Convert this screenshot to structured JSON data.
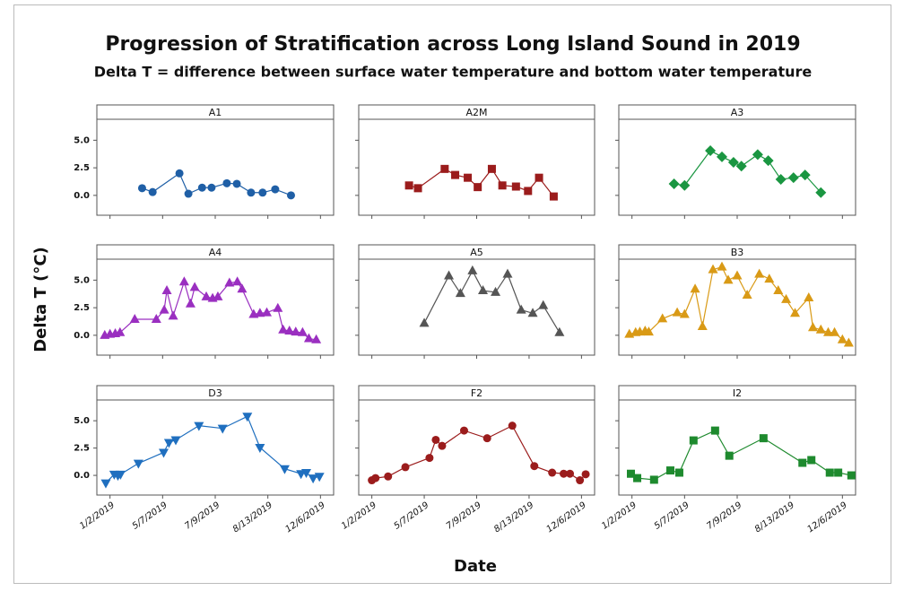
{
  "chart_data": {
    "type": "line",
    "title": "Progression of Stratification across Long Island Sound in 2019",
    "subtitle": "Delta T = difference between surface water temperature and bottom water temperature",
    "x_label": "Date",
    "y_label": "Delta T (°C)",
    "xlim": [
      -0.25,
      4.25
    ],
    "xticks": [
      {
        "value": 0,
        "label": "1/2/2019"
      },
      {
        "value": 1,
        "label": "5/7/2019"
      },
      {
        "value": 2,
        "label": "7/9/2019"
      },
      {
        "value": 3,
        "label": "8/13/2019"
      },
      {
        "value": 4,
        "label": "12/6/2019"
      }
    ],
    "ylim": [
      -1.8,
      6.9
    ],
    "yticks": [
      {
        "value": 0,
        "label": "0.0"
      },
      {
        "value": 2.5,
        "label": "2.5"
      },
      {
        "value": 5,
        "label": "5.0"
      }
    ],
    "panels": [
      {
        "title": "A1",
        "color": "#1f5fa6",
        "marker": "circle",
        "x": [
          0.61,
          0.81,
          1.32,
          1.49,
          1.75,
          1.93,
          2.22,
          2.41,
          2.68,
          2.9,
          3.14,
          3.44
        ],
        "values": [
          0.65,
          0.3,
          2.0,
          0.15,
          0.7,
          0.7,
          1.1,
          1.05,
          0.25,
          0.25,
          0.55,
          0.0
        ]
      },
      {
        "title": "A2M",
        "color": "#9b1c1c",
        "marker": "square",
        "x": [
          0.71,
          0.88,
          1.39,
          1.59,
          1.83,
          2.02,
          2.29,
          2.49,
          2.75,
          2.98,
          3.19,
          3.47
        ],
        "values": [
          0.9,
          0.65,
          2.4,
          1.85,
          1.6,
          0.75,
          2.4,
          0.9,
          0.8,
          0.4,
          1.6,
          -0.1
        ]
      },
      {
        "title": "A3",
        "color": "#1a9641",
        "marker": "diamond",
        "x": [
          0.8,
          1.0,
          1.49,
          1.71,
          1.93,
          2.08,
          2.39,
          2.59,
          2.83,
          3.07,
          3.29,
          3.59
        ],
        "values": [
          1.05,
          0.9,
          4.05,
          3.5,
          3.0,
          2.65,
          3.7,
          3.15,
          1.45,
          1.6,
          1.85,
          0.25
        ]
      },
      {
        "title": "A4",
        "color": "#9a2fc0",
        "marker": "triangle",
        "x": [
          -0.1,
          0,
          0.1,
          0.19,
          0.47,
          0.88,
          1.03,
          1.08,
          1.2,
          1.41,
          1.53,
          1.61,
          1.83,
          1.95,
          2.05,
          2.27,
          2.42,
          2.51,
          2.73,
          2.85,
          2.98,
          3.19,
          3.29,
          3.41,
          3.53,
          3.66,
          3.78,
          3.92
        ],
        "values": [
          0,
          0.1,
          0.15,
          0.25,
          1.45,
          1.45,
          2.3,
          4.05,
          1.75,
          4.85,
          2.85,
          4.35,
          3.5,
          3.35,
          3.5,
          4.75,
          4.85,
          4.2,
          1.9,
          2.0,
          2.05,
          2.45,
          0.5,
          0.4,
          0.3,
          0.25,
          -0.3,
          -0.4
        ]
      },
      {
        "title": "A5",
        "color": "#555555",
        "marker": "triangle",
        "x": [
          1.0,
          1.47,
          1.69,
          1.92,
          2.12,
          2.36,
          2.59,
          2.85,
          3.07,
          3.27,
          3.58
        ],
        "values": [
          1.1,
          5.4,
          3.8,
          5.85,
          4.05,
          3.9,
          5.55,
          2.3,
          2.0,
          2.7,
          0.25
        ]
      },
      {
        "title": "B3",
        "color": "#d99a16",
        "marker": "triangle",
        "x": [
          -0.05,
          0.07,
          0.15,
          0.25,
          0.32,
          0.58,
          0.86,
          1.0,
          1.2,
          1.34,
          1.54,
          1.71,
          1.83,
          2.0,
          2.19,
          2.42,
          2.61,
          2.78,
          2.93,
          3.1,
          3.36,
          3.44,
          3.59,
          3.73,
          3.85,
          4.0,
          4.12
        ],
        "values": [
          0.1,
          0.25,
          0.3,
          0.4,
          0.3,
          1.5,
          2.05,
          1.9,
          4.2,
          0.8,
          5.95,
          6.2,
          5.0,
          5.4,
          3.65,
          5.55,
          5.1,
          4.05,
          3.25,
          2.0,
          3.4,
          0.7,
          0.5,
          0.25,
          0.25,
          -0.4,
          -0.7
        ]
      },
      {
        "title": "D3",
        "color": "#1f6fbf",
        "marker": "triangle-down",
        "x": [
          -0.08,
          0.08,
          0.15,
          0.2,
          0.54,
          1.02,
          1.12,
          1.25,
          1.69,
          2.14,
          2.61,
          2.85,
          3.32,
          3.63,
          3.73,
          3.86,
          3.98
        ],
        "values": [
          -0.7,
          0.1,
          0,
          0.1,
          1.1,
          2.1,
          3.0,
          3.25,
          4.55,
          4.3,
          5.4,
          2.55,
          0.6,
          0.15,
          0.25,
          -0.25,
          -0.1
        ]
      },
      {
        "title": "F2",
        "color": "#9b1c1c",
        "marker": "circle",
        "x": [
          0,
          0.07,
          0.31,
          0.64,
          1.1,
          1.22,
          1.34,
          1.76,
          2.2,
          2.68,
          3.1,
          3.44,
          3.66,
          3.78,
          3.97,
          4.08
        ],
        "values": [
          -0.45,
          -0.25,
          -0.1,
          0.75,
          1.6,
          3.25,
          2.7,
          4.1,
          3.4,
          4.55,
          0.85,
          0.25,
          0.15,
          0.15,
          -0.45,
          0.1
        ]
      },
      {
        "title": "I2",
        "color": "#1e8a2e",
        "marker": "square",
        "x": [
          -0.02,
          0.1,
          0.42,
          0.73,
          0.9,
          1.17,
          1.58,
          1.85,
          2.5,
          3.24,
          3.41,
          3.76,
          3.92,
          4.17
        ],
        "values": [
          0.15,
          -0.25,
          -0.4,
          0.45,
          0.25,
          3.2,
          4.1,
          1.8,
          3.4,
          1.15,
          1.4,
          0.25,
          0.25,
          0.0
        ]
      }
    ]
  }
}
